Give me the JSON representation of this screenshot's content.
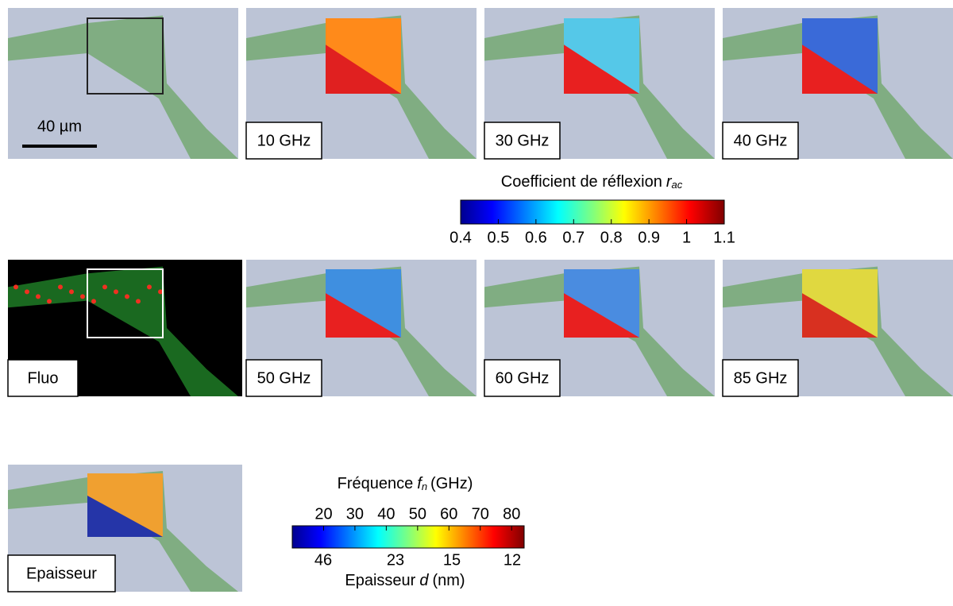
{
  "panels": [
    {
      "label": "40 µm"
    },
    {
      "label": "10 GHz"
    },
    {
      "label": "30 GHz"
    },
    {
      "label": "40 GHz"
    },
    {
      "label": "Fluo"
    },
    {
      "label": "50 GHz"
    },
    {
      "label": "60 GHz"
    },
    {
      "label": "85 GHz"
    },
    {
      "label": "Epaisseur"
    }
  ],
  "colorbar_reflection": {
    "title": "Coefficient de réflexion",
    "symbol": "r",
    "subscript": "ac",
    "lim": [
      0.4,
      1.1
    ],
    "ticks": [
      0.4,
      0.5,
      0.6,
      0.7,
      0.8,
      0.9,
      1,
      1.1
    ]
  },
  "colorbar_frequency": {
    "title": "Fréquence",
    "symbol": "f",
    "subscript": "n",
    "unit": "(GHz)",
    "lim": [
      10,
      84
    ],
    "ticks": [
      20,
      30,
      40,
      50,
      60,
      70,
      80
    ],
    "thickness_title": "Epaisseur",
    "thickness_symbol": "d",
    "thickness_unit": "(nm)",
    "thickness_ticks": [
      46,
      23,
      15,
      12
    ]
  }
}
